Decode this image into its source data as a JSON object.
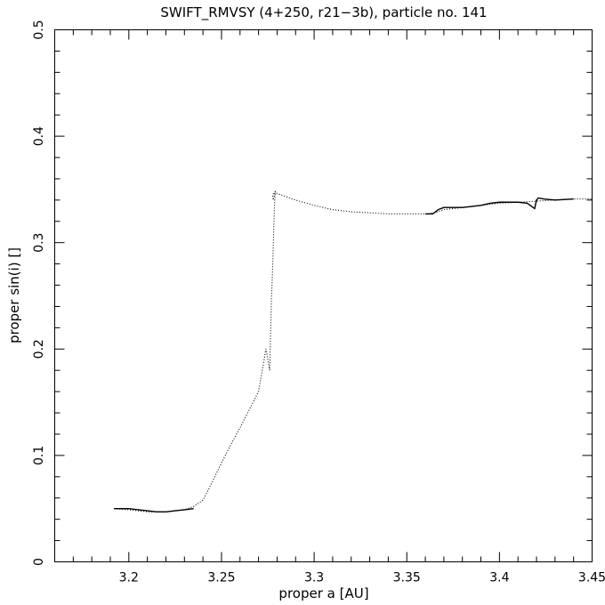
{
  "chart_data": {
    "type": "line",
    "title": "SWIFT_RMVSY (4+250, r21−3b), particle no. 141",
    "xlabel": "proper a [AU]",
    "ylabel": "proper sin(i) []",
    "xlim": [
      3.16,
      3.45
    ],
    "ylim": [
      0,
      0.5
    ],
    "x_ticks": [
      {
        "value": 3.2,
        "label": "3.2"
      },
      {
        "value": 3.25,
        "label": "3.25"
      },
      {
        "value": 3.3,
        "label": "3.3"
      },
      {
        "value": 3.35,
        "label": "3.35"
      },
      {
        "value": 3.4,
        "label": "3.4"
      },
      {
        "value": 3.45,
        "label": "3.45"
      }
    ],
    "y_ticks": [
      {
        "value": 0,
        "label": "0"
      },
      {
        "value": 0.1,
        "label": "0.1"
      },
      {
        "value": 0.2,
        "label": "0.2"
      },
      {
        "value": 0.3,
        "label": "0.3"
      },
      {
        "value": 0.4,
        "label": "0.4"
      },
      {
        "value": 0.5,
        "label": "0.5"
      }
    ],
    "grid": false,
    "series": [
      {
        "style": "dotted",
        "x": [
          3.192,
          3.2,
          3.205,
          3.21,
          3.215,
          3.22,
          3.225,
          3.23,
          3.235,
          3.24,
          3.245,
          3.25,
          3.255,
          3.26,
          3.265,
          3.27,
          3.274,
          3.276,
          3.277,
          3.2775,
          3.278,
          3.2785,
          3.279,
          3.278,
          3.2775,
          3.279,
          3.28,
          3.282,
          3.285,
          3.29,
          3.3,
          3.31,
          3.32,
          3.33,
          3.34,
          3.35,
          3.36,
          3.365,
          3.37,
          3.38,
          3.39,
          3.4,
          3.41,
          3.42,
          3.43,
          3.44,
          3.45
        ],
        "y": [
          0.05,
          0.049,
          0.048,
          0.047,
          0.047,
          0.047,
          0.048,
          0.049,
          0.052,
          0.058,
          0.075,
          0.093,
          0.11,
          0.126,
          0.143,
          0.16,
          0.2,
          0.18,
          0.25,
          0.27,
          0.3,
          0.33,
          0.348,
          0.34,
          0.345,
          0.348,
          0.346,
          0.345,
          0.343,
          0.34,
          0.335,
          0.331,
          0.329,
          0.328,
          0.327,
          0.327,
          0.327,
          0.328,
          0.331,
          0.333,
          0.335,
          0.337,
          0.338,
          0.339,
          0.34,
          0.341,
          0.341
        ]
      },
      {
        "style": "solid",
        "x": [
          3.192,
          3.2,
          3.205,
          3.21,
          3.215,
          3.22,
          3.225,
          3.23,
          3.235
        ],
        "y": [
          0.05,
          0.05,
          0.049,
          0.048,
          0.047,
          0.047,
          0.048,
          0.049,
          0.05
        ]
      },
      {
        "style": "solid",
        "x": [
          3.36,
          3.364,
          3.367,
          3.37,
          3.375,
          3.38,
          3.385,
          3.39,
          3.395,
          3.4,
          3.405,
          3.41,
          3.415,
          3.419,
          3.42,
          3.421,
          3.424,
          3.43,
          3.44
        ],
        "y": [
          0.327,
          0.327,
          0.331,
          0.333,
          0.333,
          0.333,
          0.334,
          0.335,
          0.337,
          0.338,
          0.338,
          0.338,
          0.337,
          0.332,
          0.34,
          0.342,
          0.341,
          0.34,
          0.341
        ]
      }
    ]
  }
}
